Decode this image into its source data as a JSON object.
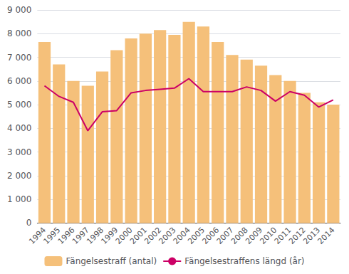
{
  "chart_data": {
    "type": "bar",
    "categories": [
      "1994",
      "1995",
      "1996",
      "1997",
      "1998",
      "1999",
      "2000",
      "2001",
      "2002",
      "2003",
      "2004",
      "2005",
      "2006",
      "2007",
      "2008",
      "2009",
      "2010",
      "2011",
      "2012",
      "2013",
      "2014"
    ],
    "series": [
      {
        "name": "Fängelsestraff (antal)",
        "type": "bar",
        "color": "#f5c07a",
        "values": [
          7650,
          6700,
          6000,
          5800,
          6400,
          7300,
          7800,
          8000,
          8150,
          7950,
          8500,
          8300,
          7650,
          7100,
          6900,
          6650,
          6250,
          6000,
          5500,
          5100,
          5000
        ]
      },
      {
        "name": "Fängelsestraffens längd (år)",
        "type": "line",
        "color": "#cc0066",
        "values": [
          5800,
          5350,
          5100,
          3900,
          4700,
          4750,
          5500,
          5600,
          5650,
          5700,
          6100,
          5550,
          5550,
          5550,
          5750,
          5600,
          5150,
          5550,
          5400,
          4900,
          5200
        ]
      }
    ],
    "ylim": [
      0,
      9000
    ],
    "yticks": [
      0,
      {
        "value": 1000,
        "label": "1 000"
      },
      {
        "value": 2000,
        "label": "2 000"
      },
      {
        "value": 3000,
        "label": "3 000"
      },
      {
        "value": 4000,
        "label": "4 000"
      },
      {
        "value": 5000,
        "label": "5 000"
      },
      {
        "value": 6000,
        "label": "6 000"
      },
      {
        "value": 7000,
        "label": "7 000"
      },
      {
        "value": 8000,
        "label": "8 000"
      },
      {
        "value": 9000,
        "label": "9 000"
      }
    ],
    "grid": true,
    "legend": "bottom"
  }
}
